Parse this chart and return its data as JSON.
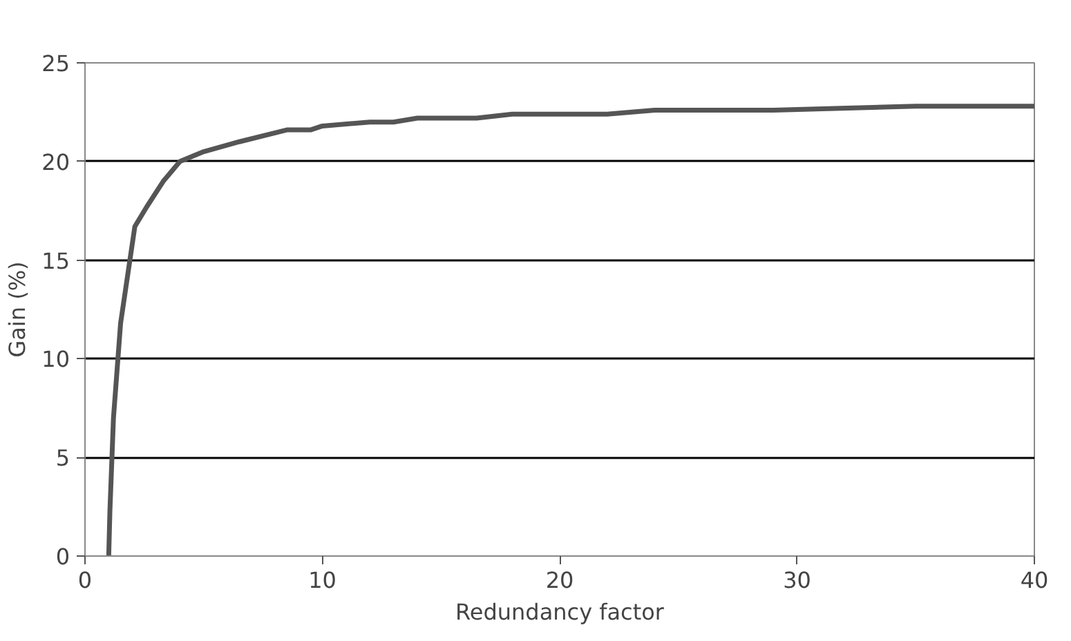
{
  "chart_data": {
    "type": "line",
    "xlabel": "Redundancy factor",
    "ylabel": "Gain (%)",
    "x": [
      1,
      1.05,
      1.2,
      1.5,
      2.1,
      2.6,
      3.3,
      4,
      5,
      6.5,
      8.5,
      9.5,
      10,
      12,
      13,
      14,
      16.5,
      18,
      22,
      24,
      29,
      35,
      40
    ],
    "series": [
      {
        "color": "#555555",
        "values": [
          0,
          2.3,
          7,
          11.8,
          16.7,
          17.7,
          19,
          20,
          20.5,
          21,
          21.6,
          21.6,
          21.8,
          22,
          22,
          22.2,
          22.2,
          22.4,
          22.4,
          22.6,
          22.6,
          22.8,
          22.8
        ]
      }
    ],
    "xlim": [
      0,
      40
    ],
    "xticks": [
      0,
      10,
      20,
      30,
      40
    ],
    "ylim": [
      0,
      25
    ],
    "yticks": [
      0,
      5,
      10,
      15,
      20,
      25
    ],
    "grid": "y",
    "marker": "none",
    "line_style": "solid"
  }
}
